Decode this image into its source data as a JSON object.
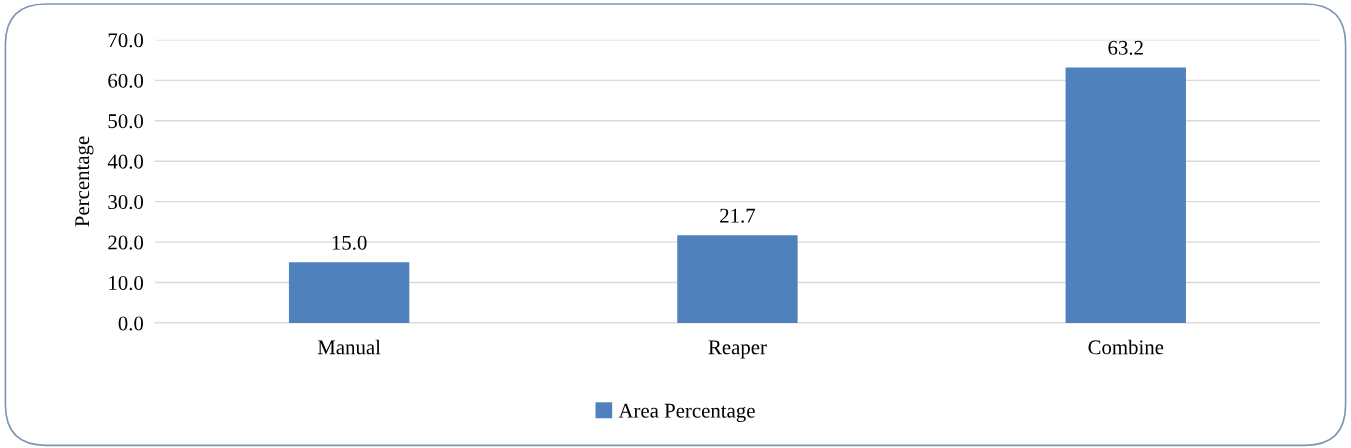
{
  "chart_data": {
    "type": "bar",
    "ylabel": "Percentage",
    "categories": [
      "Manual",
      "Reaper",
      "Combine"
    ],
    "series": [
      {
        "name": "Area Percentage",
        "color": "#4f81bd",
        "values": [
          15.0,
          21.7,
          63.2
        ]
      }
    ],
    "ylim": [
      0,
      70
    ],
    "yticks": [
      {
        "value": 0,
        "label": "0.0"
      },
      {
        "value": 10,
        "label": "10.0"
      },
      {
        "value": 20,
        "label": "20.0"
      },
      {
        "value": 30,
        "label": "30.0"
      },
      {
        "value": 40,
        "label": "40.0"
      },
      {
        "value": 50,
        "label": "50.0"
      },
      {
        "value": 60,
        "label": "60.0"
      },
      {
        "value": 70,
        "label": "70.0"
      }
    ],
    "value_labels": [
      "15.0",
      "21.7",
      "63.2"
    ],
    "grid": "y",
    "legend": "bottom"
  }
}
